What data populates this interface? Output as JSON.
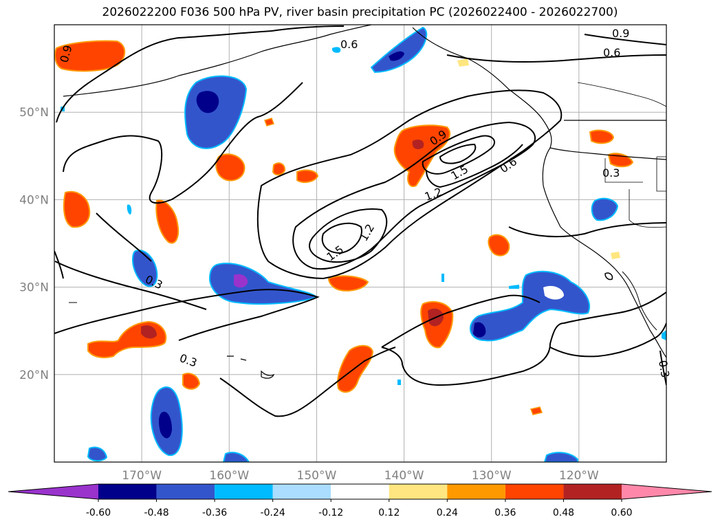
{
  "title": "2026022200 F036 500 hPa PV, river basin precipitation PC (2026022400 - 2026022700)",
  "map": {
    "lat_ticks": [
      "50°N",
      "40°N",
      "30°N",
      "20°N"
    ],
    "lon_ticks": [
      "170°W",
      "160°W",
      "150°W",
      "140°W",
      "130°W",
      "120°W"
    ],
    "lat_values": [
      50,
      40,
      30,
      20
    ],
    "lon_values": [
      -170,
      -160,
      -150,
      -140,
      -130,
      -120
    ],
    "extent": {
      "lon_min": -180,
      "lon_max": -110,
      "lat_min": 10,
      "lat_max": 60
    },
    "gridlines": true
  },
  "pv_contour_labels": [
    "0.9",
    "0.6",
    "0.9",
    "0.6",
    "0.3",
    "0.9",
    "1.5",
    "1.2",
    "0.6",
    "1.5",
    "1.2",
    "0.3",
    "0.3",
    "0.3"
  ],
  "colorbar": {
    "labels": [
      "-0.60",
      "-0.48",
      "-0.36",
      "-0.24",
      "-0.12",
      "0.12",
      "0.24",
      "0.36",
      "0.48",
      "0.60"
    ],
    "levels": [
      -0.6,
      -0.48,
      -0.36,
      -0.24,
      -0.12,
      0.12,
      0.24,
      0.36,
      0.48,
      0.6
    ],
    "colors": [
      "#9933cc",
      "#00008b",
      "#3355cc",
      "#00bbff",
      "#aaddff",
      "#ffffff",
      "#ffe680",
      "#ff9900",
      "#ff4400",
      "#b22222",
      "#ff88aa"
    ],
    "extend": "both"
  }
}
